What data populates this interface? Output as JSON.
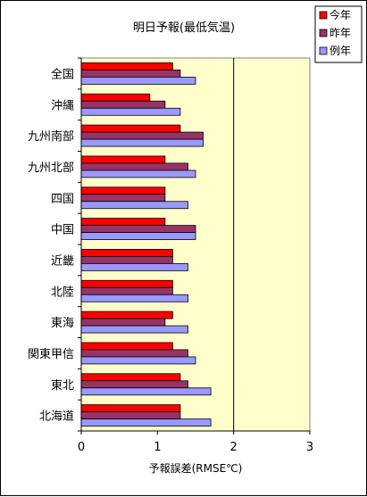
{
  "chart_data": {
    "type": "bar",
    "orientation": "horizontal",
    "title": "明日予報(最低気温)",
    "xlabel": "予報誤差(RMSE℃)",
    "ylabel": "",
    "xlim": [
      0,
      3
    ],
    "xticks": [
      "0",
      "1",
      "2",
      "3"
    ],
    "categories": [
      "全国",
      "沖縄",
      "九州南部",
      "九州北部",
      "四国",
      "中国",
      "近畿",
      "北陸",
      "東海",
      "関東甲信",
      "東北",
      "北海道"
    ],
    "series": [
      {
        "name": "今年",
        "color": "#ff0000",
        "values": [
          1.2,
          0.9,
          1.3,
          1.1,
          1.1,
          1.1,
          1.2,
          1.2,
          1.2,
          1.2,
          1.3,
          1.3
        ]
      },
      {
        "name": "昨年",
        "color": "#993366",
        "values": [
          1.3,
          1.1,
          1.6,
          1.4,
          1.1,
          1.5,
          1.2,
          1.2,
          1.1,
          1.4,
          1.4,
          1.3
        ]
      },
      {
        "name": "例年",
        "color": "#9999ff",
        "values": [
          1.5,
          1.3,
          1.6,
          1.5,
          1.4,
          1.5,
          1.4,
          1.4,
          1.4,
          1.5,
          1.7,
          1.7
        ]
      }
    ],
    "plot_background": "#ffffcc",
    "reference_line_at": 2,
    "legend_position": "top-right",
    "grid": false
  }
}
